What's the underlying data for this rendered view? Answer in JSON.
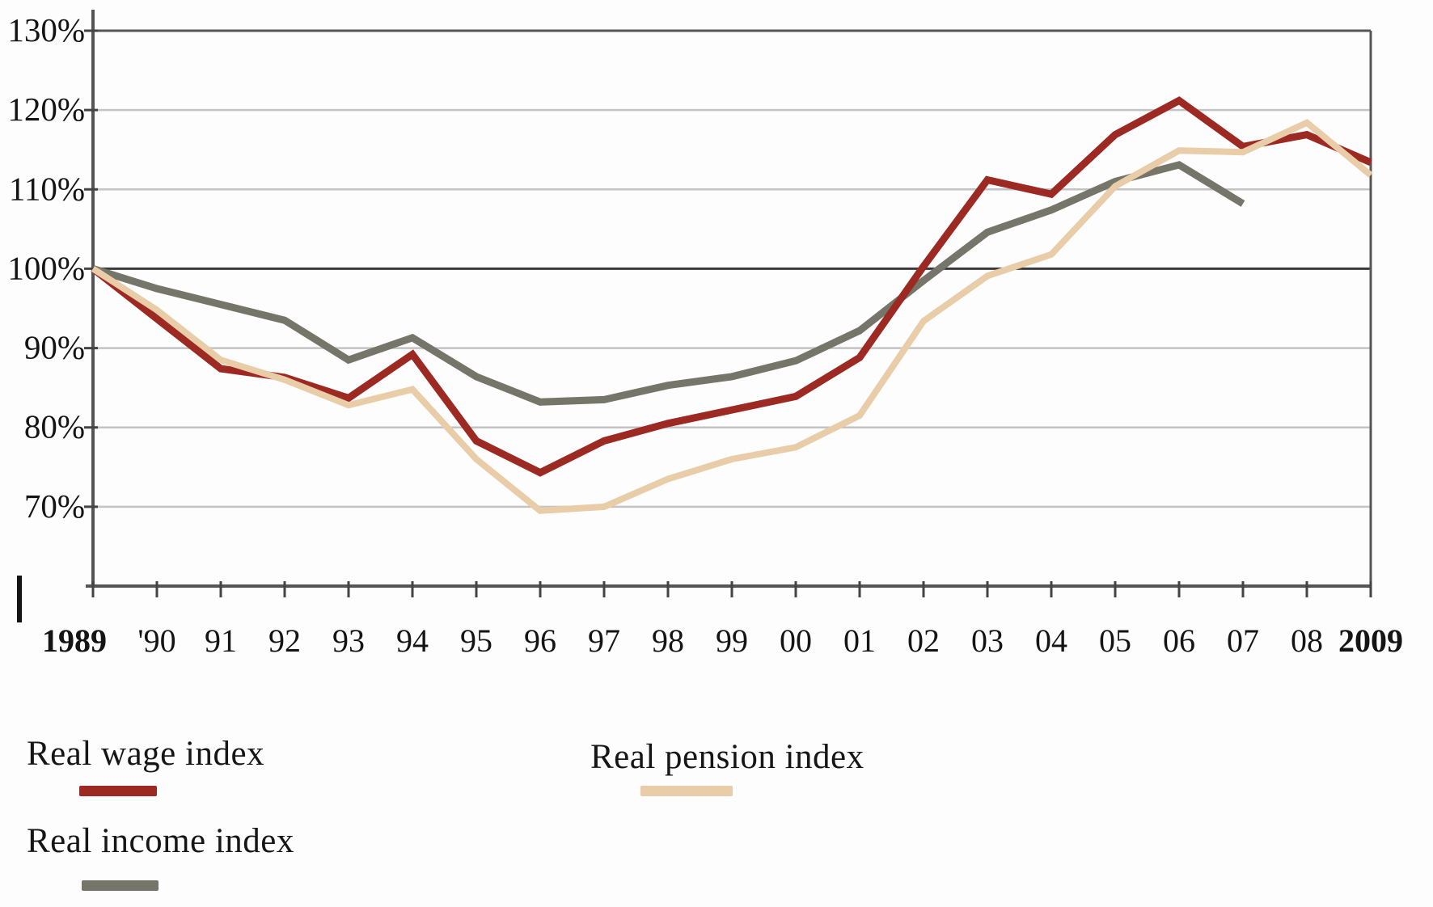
{
  "chart_data": {
    "type": "line",
    "title": "",
    "xlabel": "",
    "ylabel": "",
    "x_labels": [
      "1989",
      "'90",
      "91",
      "92",
      "93",
      "94",
      "95",
      "96",
      "97",
      "98",
      "99",
      "00",
      "01",
      "02",
      "03",
      "04",
      "05",
      "06",
      "07",
      "08",
      "2009"
    ],
    "y_tick_labels": [
      "130%",
      "120%",
      "110%",
      "100%",
      "90%",
      "80%",
      "70%"
    ],
    "y_tick_values": [
      130,
      120,
      110,
      100,
      90,
      80,
      70
    ],
    "ylim": [
      60,
      130
    ],
    "baseline_value": 100,
    "grid": "horizontal",
    "legend_position": "below-chart",
    "series": [
      {
        "name": "Real wage index",
        "color": "#9d2923",
        "values": [
          100,
          93.7,
          87.4,
          86.3,
          83.7,
          89.2,
          78.3,
          74.3,
          78.3,
          80.5,
          82.2,
          83.9,
          88.8,
          100.3,
          111.2,
          109.4,
          116.9,
          121.2,
          115.4,
          116.9,
          113.4
        ]
      },
      {
        "name": "Real pension index",
        "color": "#e9cca8",
        "values": [
          100,
          94.8,
          88.5,
          86.0,
          82.8,
          84.8,
          76.0,
          69.5,
          70.0,
          73.5,
          76.0,
          77.5,
          81.5,
          93.4,
          99.1,
          101.8,
          110.4,
          114.9,
          114.7,
          118.4,
          111.8
        ]
      },
      {
        "name": "Real income index",
        "color": "#75756a",
        "values": [
          100,
          97.5,
          95.5,
          93.5,
          88.5,
          91.3,
          86.4,
          83.2,
          83.5,
          85.3,
          86.4,
          88.4,
          92.2,
          98.5,
          104.6,
          107.4,
          111.0,
          113.1,
          108.2,
          null,
          null
        ]
      }
    ],
    "styles": {
      "frame_color": "#555555",
      "baseline_color": "#3a3a3a",
      "gridline_color": "#c3c3c3",
      "tick_color": "#444444",
      "label_color": "#141414"
    }
  },
  "legend": {
    "wage_label": "Real wage index",
    "pension_label": "Real pension index",
    "income_label": "Real income index"
  }
}
